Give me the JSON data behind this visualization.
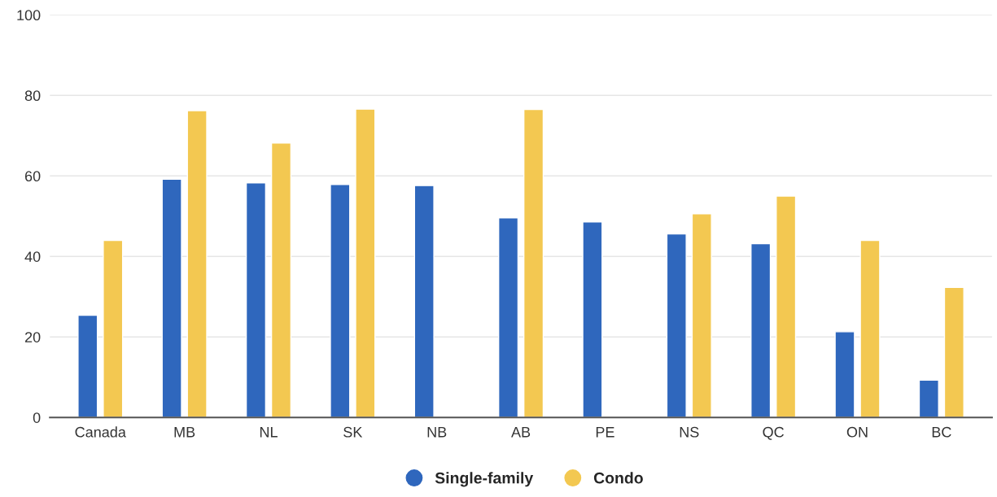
{
  "chart_data": {
    "type": "bar",
    "categories": [
      "Canada",
      "MB",
      "NL",
      "SK",
      "NB",
      "AB",
      "PE",
      "NS",
      "QC",
      "ON",
      "BC"
    ],
    "series": [
      {
        "name": "Single-family",
        "color": "#2f67bd",
        "values": [
          25.4,
          59.2,
          58.3,
          57.9,
          57.6,
          49.6,
          48.6,
          45.6,
          43.2,
          21.3,
          9.3
        ]
      },
      {
        "name": "Condo",
        "color": "#f3c851",
        "values": [
          44.0,
          76.2,
          68.2,
          76.6,
          null,
          76.5,
          null,
          50.6,
          55.0,
          44.0,
          32.3
        ]
      }
    ],
    "ylim": [
      0,
      100
    ],
    "yticks": [
      0,
      20,
      40,
      60,
      80,
      100
    ],
    "grid": "y",
    "legend": "bottom"
  }
}
